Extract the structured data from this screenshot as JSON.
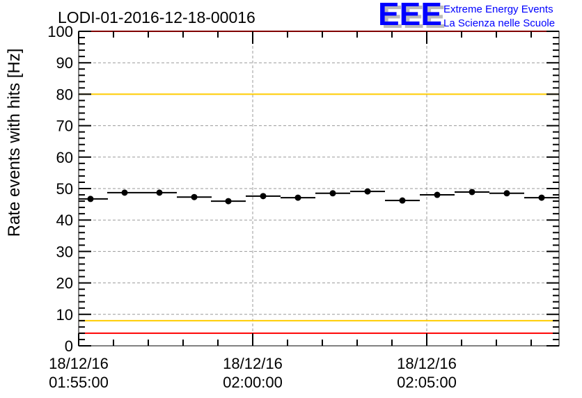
{
  "chart_data": {
    "type": "scatter",
    "title": "LODI-01-2016-12-18-00016",
    "xlabel": "",
    "ylabel": "Rate events with hits [Hz]",
    "ylim": [
      0,
      100
    ],
    "xlim_minutes_from_01_55_00": [
      0,
      13.8
    ],
    "yticks": [
      0,
      10,
      20,
      30,
      40,
      50,
      60,
      70,
      80,
      90,
      100
    ],
    "xticks": [
      {
        "minutes": 0,
        "date": "18/12/16",
        "time": "01:55:00"
      },
      {
        "minutes": 5,
        "date": "18/12/16",
        "time": "02:00:00"
      },
      {
        "minutes": 10,
        "date": "18/12/16",
        "time": "02:05:00"
      }
    ],
    "grid": true,
    "bin_width_minutes": 1,
    "x_minutes": [
      0.34,
      1.32,
      2.32,
      3.32,
      4.3,
      5.3,
      6.3,
      7.3,
      8.3,
      9.3,
      10.3,
      11.3,
      12.3,
      13.3
    ],
    "values": [
      46.7,
      48.7,
      48.7,
      47.3,
      46.0,
      47.6,
      47.1,
      48.5,
      49.1,
      46.2,
      48.0,
      48.9,
      48.5,
      47.1
    ],
    "reference_lines": [
      {
        "y": 100,
        "color": "#ff0000"
      },
      {
        "y": 80,
        "color": "#ffcc00"
      },
      {
        "y": 8,
        "color": "#ffcc00"
      },
      {
        "y": 4,
        "color": "#ff0000"
      }
    ]
  },
  "logo": {
    "mark": "EEE",
    "line1": "Extreme Energy Events",
    "line2": "La Scienza nelle Scuole",
    "color": "#0000ff"
  }
}
